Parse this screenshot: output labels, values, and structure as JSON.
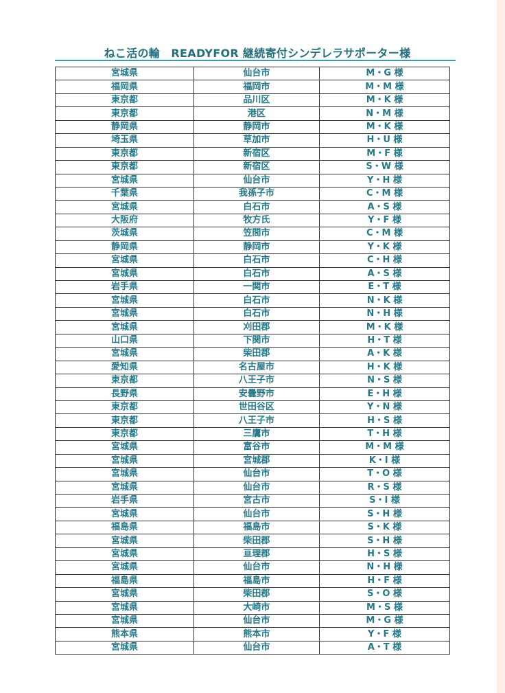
{
  "title": "ねこ活の輪　READYFOR 継続寄付シンデレラサポーター様",
  "colors": {
    "text": "#27798a",
    "rule": "#3a9aaa",
    "border": "#333333"
  },
  "rows": [
    [
      "宮城県",
      "仙台市",
      "M・G 様"
    ],
    [
      "福岡県",
      "福岡市",
      "M・M 様"
    ],
    [
      "東京都",
      "品川区",
      "M・K 様"
    ],
    [
      "東京都",
      "港区",
      "N・M 様"
    ],
    [
      "静岡県",
      "静岡市",
      "M・K 様"
    ],
    [
      "埼玉県",
      "草加市",
      "H・U 様"
    ],
    [
      "東京都",
      "新宿区",
      "M・F 様"
    ],
    [
      "東京都",
      "新宿区",
      "S・W 様"
    ],
    [
      "宮城県",
      "仙台市",
      "Y・H 様"
    ],
    [
      "千葉県",
      "我孫子市",
      "C・M 様"
    ],
    [
      "宮城県",
      "白石市",
      "A・S 様"
    ],
    [
      "大阪府",
      "牧方氏",
      "Y・F 様"
    ],
    [
      "茨城県",
      "笠間市",
      "C・M 様"
    ],
    [
      "静岡県",
      "静岡市",
      "Y・K 様"
    ],
    [
      "宮城県",
      "白石市",
      "C・H 様"
    ],
    [
      "宮城県",
      "白石市",
      "A・S 様"
    ],
    [
      "岩手県",
      "一関市",
      "E・T 様"
    ],
    [
      "宮城県",
      "白石市",
      "N・K 様"
    ],
    [
      "宮城県",
      "白石市",
      "N・H 様"
    ],
    [
      "宮城県",
      "刈田郡",
      "M・K 様"
    ],
    [
      "山口県",
      "下関市",
      "H・T 様"
    ],
    [
      "宮城県",
      "柴田郡",
      "A・K 様"
    ],
    [
      "愛知県",
      "名古屋市",
      "H・K 様"
    ],
    [
      "東京都",
      "八王子市",
      "N・S 様"
    ],
    [
      "長野県",
      "安曇野市",
      "E・H 様"
    ],
    [
      "東京都",
      "世田谷区",
      "Y・N 様"
    ],
    [
      "東京都",
      "八王子市",
      "H・S 様"
    ],
    [
      "東京都",
      "三鷹市",
      "T・H 様"
    ],
    [
      "宮城県",
      "富谷市",
      "M・M 様"
    ],
    [
      "宮城県",
      "宮城郡",
      "K・I 様"
    ],
    [
      "宮城県",
      "仙台市",
      "T・O 様"
    ],
    [
      "宮城県",
      "仙台市",
      "R・S 様"
    ],
    [
      "岩手県",
      "宮古市",
      "S・I 様"
    ],
    [
      "宮城県",
      "仙台市",
      "S・H 様"
    ],
    [
      "福島県",
      "福島市",
      "S・K 様"
    ],
    [
      "宮城県",
      "柴田郡",
      "S・H 様"
    ],
    [
      "宮城県",
      "亘理郡",
      "H・S 様"
    ],
    [
      "宮城県",
      "仙台市",
      "N・H 様"
    ],
    [
      "福島県",
      "福島市",
      "H・F 様"
    ],
    [
      "宮城県",
      "柴田郡",
      "S・O 様"
    ],
    [
      "宮城県",
      "大崎市",
      "M・S 様"
    ],
    [
      "宮城県",
      "仙台市",
      "M・G 様"
    ],
    [
      "熊本県",
      "熊本市",
      "Y・F 様"
    ],
    [
      "宮城県",
      "仙台市",
      "A・T 様"
    ]
  ]
}
